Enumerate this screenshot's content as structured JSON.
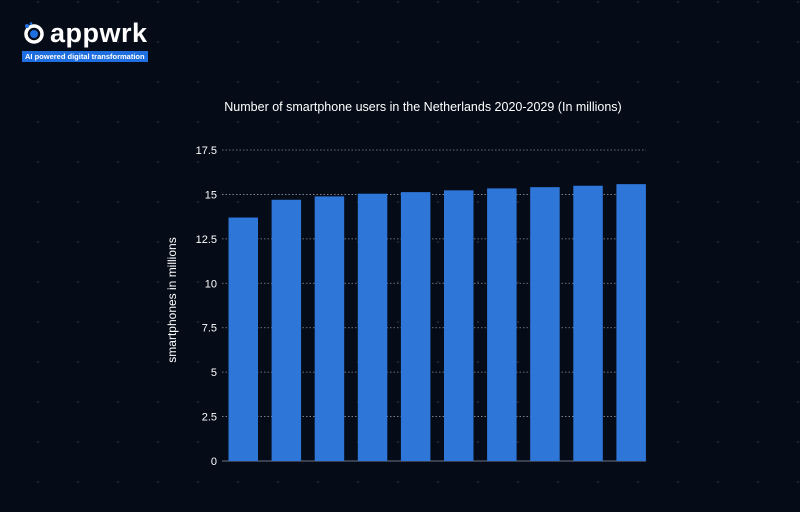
{
  "logo": {
    "name": "appwrk",
    "tagline": "AI powered digital transformation"
  },
  "chart_data": {
    "type": "bar",
    "title": "Number of smartphone users in the Netherlands 2020-2029 (In millions)",
    "xlabel": "",
    "ylabel": "smartphones in millions",
    "values": [
      13.7,
      14.7,
      14.89,
      15.04,
      15.13,
      15.23,
      15.34,
      15.41,
      15.49,
      15.58
    ],
    "ylim": [
      0,
      17.5
    ],
    "yticks": [
      "0",
      "2.5",
      "5",
      "7.5",
      "10",
      "12.5",
      "15",
      "17.5"
    ],
    "grid": true,
    "bar_color": "#2e76d8",
    "background": "#050b17"
  }
}
